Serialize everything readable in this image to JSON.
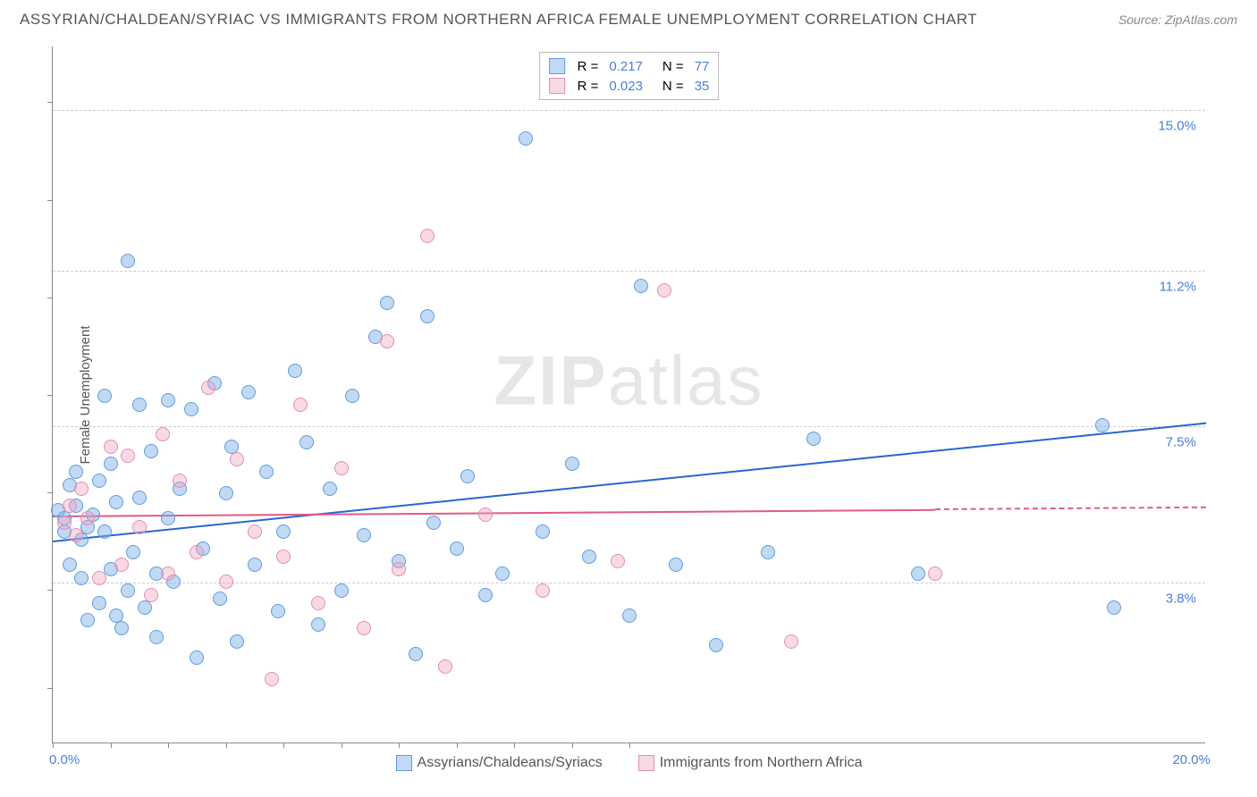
{
  "header": {
    "title": "ASSYRIAN/CHALDEAN/SYRIAC VS IMMIGRANTS FROM NORTHERN AFRICA FEMALE UNEMPLOYMENT CORRELATION CHART",
    "source": "Source: ZipAtlas.com"
  },
  "chart": {
    "type": "scatter",
    "ylabel": "Female Unemployment",
    "watermark": {
      "bold": "ZIP",
      "light": "atlas"
    },
    "xlim": [
      0,
      20
    ],
    "ylim": [
      0,
      16.5
    ],
    "x_axis": {
      "label_left": "0.0%",
      "label_right": "20.0%",
      "tick_positions_pct": [
        0,
        5,
        10,
        15,
        20,
        25,
        30,
        35,
        40,
        45,
        50
      ]
    },
    "y_axis": {
      "gridlines": [
        {
          "value": 3.8,
          "label": "3.8%"
        },
        {
          "value": 7.5,
          "label": "7.5%"
        },
        {
          "value": 11.2,
          "label": "11.2%"
        },
        {
          "value": 15.0,
          "label": "15.0%"
        }
      ],
      "tick_positions_pct": [
        8,
        22,
        36,
        50,
        64,
        78,
        92
      ]
    },
    "series": [
      {
        "id": "assyrians",
        "label": "Assyrians/Chaldeans/Syriacs",
        "color_fill": "rgba(120,170,230,0.45)",
        "color_stroke": "#5f9dde",
        "trend_color": "#2a66d0",
        "R": "0.217",
        "N": "77",
        "marker_radius": 8,
        "trend": {
          "x0": 0,
          "y0": 4.8,
          "x1": 20,
          "y1": 7.6,
          "solid_until_x": 20
        },
        "points": [
          [
            0.1,
            5.5
          ],
          [
            0.2,
            5.3
          ],
          [
            0.2,
            5.0
          ],
          [
            0.3,
            6.1
          ],
          [
            0.3,
            4.2
          ],
          [
            0.4,
            5.6
          ],
          [
            0.4,
            6.4
          ],
          [
            0.5,
            3.9
          ],
          [
            0.5,
            4.8
          ],
          [
            0.6,
            5.1
          ],
          [
            0.6,
            2.9
          ],
          [
            0.7,
            5.4
          ],
          [
            0.8,
            6.2
          ],
          [
            0.8,
            3.3
          ],
          [
            0.9,
            5.0
          ],
          [
            0.9,
            8.2
          ],
          [
            1.0,
            4.1
          ],
          [
            1.0,
            6.6
          ],
          [
            1.1,
            3.0
          ],
          [
            1.1,
            5.7
          ],
          [
            1.2,
            2.7
          ],
          [
            1.3,
            11.4
          ],
          [
            1.3,
            3.6
          ],
          [
            1.4,
            4.5
          ],
          [
            1.5,
            8.0
          ],
          [
            1.5,
            5.8
          ],
          [
            1.6,
            3.2
          ],
          [
            1.7,
            6.9
          ],
          [
            1.8,
            4.0
          ],
          [
            1.8,
            2.5
          ],
          [
            2.0,
            5.3
          ],
          [
            2.0,
            8.1
          ],
          [
            2.1,
            3.8
          ],
          [
            2.2,
            6.0
          ],
          [
            2.4,
            7.9
          ],
          [
            2.5,
            2.0
          ],
          [
            2.6,
            4.6
          ],
          [
            2.8,
            8.5
          ],
          [
            2.9,
            3.4
          ],
          [
            3.0,
            5.9
          ],
          [
            3.1,
            7.0
          ],
          [
            3.2,
            2.4
          ],
          [
            3.4,
            8.3
          ],
          [
            3.5,
            4.2
          ],
          [
            3.7,
            6.4
          ],
          [
            3.9,
            3.1
          ],
          [
            4.0,
            5.0
          ],
          [
            4.2,
            8.8
          ],
          [
            4.4,
            7.1
          ],
          [
            4.6,
            2.8
          ],
          [
            4.8,
            6.0
          ],
          [
            5.0,
            3.6
          ],
          [
            5.2,
            8.2
          ],
          [
            5.4,
            4.9
          ],
          [
            5.6,
            9.6
          ],
          [
            5.8,
            10.4
          ],
          [
            6.0,
            4.3
          ],
          [
            6.3,
            2.1
          ],
          [
            6.5,
            10.1
          ],
          [
            6.6,
            5.2
          ],
          [
            7.0,
            4.6
          ],
          [
            7.2,
            6.3
          ],
          [
            7.5,
            3.5
          ],
          [
            7.8,
            4.0
          ],
          [
            8.2,
            14.3
          ],
          [
            8.5,
            5.0
          ],
          [
            9.0,
            6.6
          ],
          [
            9.3,
            4.4
          ],
          [
            10.0,
            3.0
          ],
          [
            10.2,
            10.8
          ],
          [
            10.8,
            4.2
          ],
          [
            11.5,
            2.3
          ],
          [
            12.4,
            4.5
          ],
          [
            13.2,
            7.2
          ],
          [
            15.0,
            4.0
          ],
          [
            18.2,
            7.5
          ],
          [
            18.4,
            3.2
          ]
        ]
      },
      {
        "id": "nafrica",
        "label": "Immigrants from Northern Africa",
        "color_fill": "rgba(240,160,190,0.40)",
        "color_stroke": "#e28fb0",
        "trend_color": "#e05a8a",
        "R": "0.023",
        "N": "35",
        "marker_radius": 8,
        "trend": {
          "x0": 0,
          "y0": 5.4,
          "x1": 20,
          "y1": 5.6,
          "solid_until_x": 15.3
        },
        "points": [
          [
            0.2,
            5.2
          ],
          [
            0.3,
            5.6
          ],
          [
            0.4,
            4.9
          ],
          [
            0.5,
            6.0
          ],
          [
            0.6,
            5.3
          ],
          [
            0.8,
            3.9
          ],
          [
            1.0,
            7.0
          ],
          [
            1.2,
            4.2
          ],
          [
            1.3,
            6.8
          ],
          [
            1.5,
            5.1
          ],
          [
            1.7,
            3.5
          ],
          [
            1.9,
            7.3
          ],
          [
            2.0,
            4.0
          ],
          [
            2.2,
            6.2
          ],
          [
            2.5,
            4.5
          ],
          [
            2.7,
            8.4
          ],
          [
            3.0,
            3.8
          ],
          [
            3.2,
            6.7
          ],
          [
            3.5,
            5.0
          ],
          [
            3.8,
            1.5
          ],
          [
            4.0,
            4.4
          ],
          [
            4.3,
            8.0
          ],
          [
            4.6,
            3.3
          ],
          [
            5.0,
            6.5
          ],
          [
            5.4,
            2.7
          ],
          [
            5.8,
            9.5
          ],
          [
            6.0,
            4.1
          ],
          [
            6.5,
            12.0
          ],
          [
            6.8,
            1.8
          ],
          [
            7.5,
            5.4
          ],
          [
            8.5,
            3.6
          ],
          [
            9.8,
            4.3
          ],
          [
            10.6,
            10.7
          ],
          [
            12.8,
            2.4
          ],
          [
            15.3,
            4.0
          ]
        ]
      }
    ]
  }
}
